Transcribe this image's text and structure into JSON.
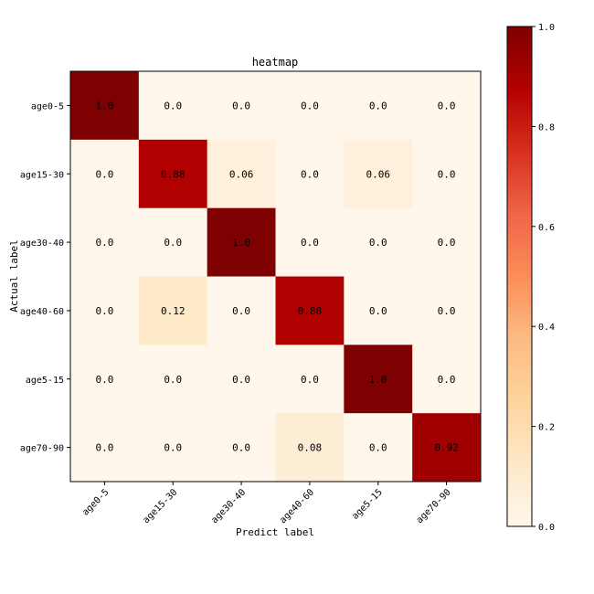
{
  "chart_data": {
    "type": "heatmap",
    "title": "heatmap",
    "xlabel": "Predict label",
    "ylabel": "Actual label",
    "x_categories": [
      "age0-5",
      "age15-30",
      "age30-40",
      "age40-60",
      "age5-15",
      "age70-90"
    ],
    "y_categories": [
      "age0-5",
      "age15-30",
      "age30-40",
      "age40-60",
      "age5-15",
      "age70-90"
    ],
    "values": [
      [
        1.0,
        0.0,
        0.0,
        0.0,
        0.0,
        0.0
      ],
      [
        0.0,
        0.88,
        0.06,
        0.0,
        0.06,
        0.0
      ],
      [
        0.0,
        0.0,
        1.0,
        0.0,
        0.0,
        0.0
      ],
      [
        0.0,
        0.12,
        0.0,
        0.88,
        0.0,
        0.0
      ],
      [
        0.0,
        0.0,
        0.0,
        0.0,
        1.0,
        0.0
      ],
      [
        0.0,
        0.0,
        0.0,
        0.08,
        0.0,
        0.92
      ]
    ],
    "cell_labels": [
      [
        "1.0",
        "0.0",
        "0.0",
        "0.0",
        "0.0",
        "0.0"
      ],
      [
        "0.0",
        "0.88",
        "0.06",
        "0.0",
        "0.06",
        "0.0"
      ],
      [
        "0.0",
        "0.0",
        "1.0",
        "0.0",
        "0.0",
        "0.0"
      ],
      [
        "0.0",
        "0.12",
        "0.0",
        "0.88",
        "0.0",
        "0.0"
      ],
      [
        "0.0",
        "0.0",
        "0.0",
        "0.0",
        "1.0",
        "0.0"
      ],
      [
        "0.0",
        "0.0",
        "0.0",
        "0.08",
        "0.0",
        "0.92"
      ]
    ],
    "colorbar": {
      "range": [
        0.0,
        1.0
      ],
      "ticks": [
        "0.0",
        "0.2",
        "0.4",
        "0.6",
        "0.8",
        "1.0"
      ],
      "colormap": "OrRd",
      "color_low": "#fff7ec",
      "color_high": "#7f0000"
    }
  }
}
